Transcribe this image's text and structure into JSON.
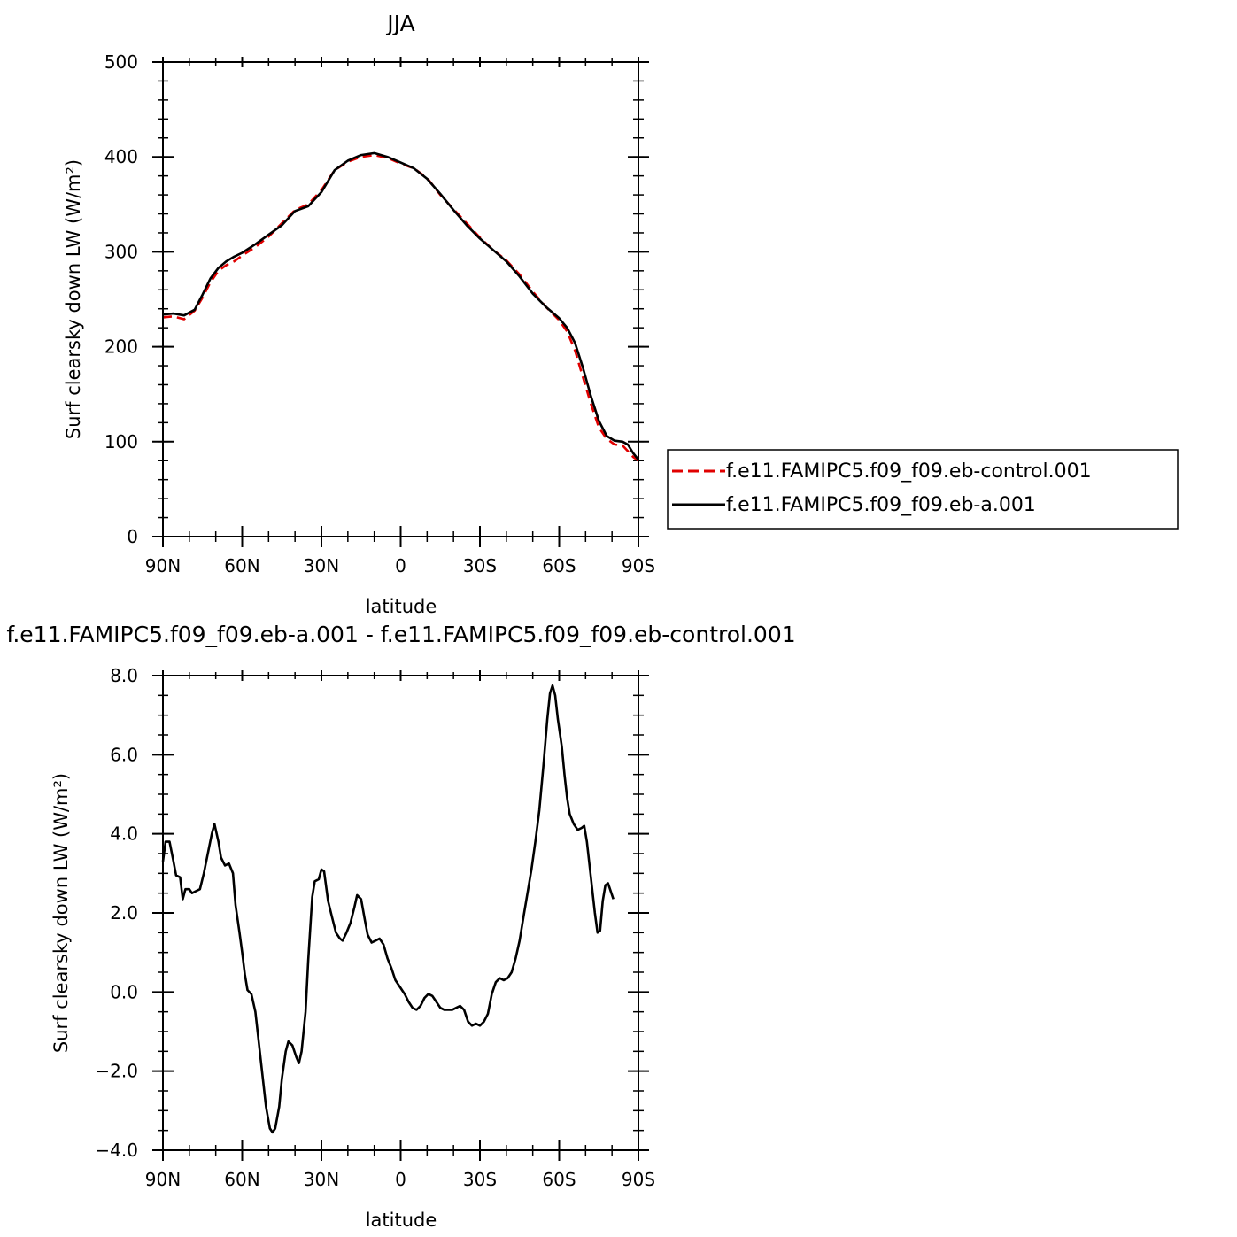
{
  "chart_data": [
    {
      "type": "line",
      "title": "JJA",
      "xlabel": "latitude",
      "ylabel": "Surf clearsky down LW (W/m²)",
      "xlim": [
        90,
        -90
      ],
      "ylim": [
        0,
        500
      ],
      "x_ticks": [
        {
          "value": 90,
          "label": "90N"
        },
        {
          "value": 60,
          "label": "60N"
        },
        {
          "value": 30,
          "label": "30N"
        },
        {
          "value": 0,
          "label": "0"
        },
        {
          "value": -30,
          "label": "30S"
        },
        {
          "value": -60,
          "label": "60S"
        },
        {
          "value": -90,
          "label": "90S"
        }
      ],
      "y_ticks": [
        {
          "value": 0,
          "label": "0"
        },
        {
          "value": 100,
          "label": "100"
        },
        {
          "value": 200,
          "label": "200"
        },
        {
          "value": 300,
          "label": "300"
        },
        {
          "value": 400,
          "label": "400"
        },
        {
          "value": 500,
          "label": "500"
        }
      ],
      "legend_position": "right",
      "series": [
        {
          "name": "f.e11.FAMIPC5.f09_f09.eb-control.001",
          "color": "#e00000",
          "dash": "dashed",
          "points": [
            [
              90,
              231
            ],
            [
              86,
              232
            ],
            [
              82,
              229
            ],
            [
              78,
              238
            ],
            [
              75,
              252
            ],
            [
              72,
              268
            ],
            [
              69,
              280
            ],
            [
              66,
              286
            ],
            [
              63,
              290
            ],
            [
              60,
              296
            ],
            [
              55,
              305
            ],
            [
              50,
              316
            ],
            [
              45,
              330
            ],
            [
              40,
              344
            ],
            [
              35,
              350
            ],
            [
              30,
              365
            ],
            [
              25,
              386
            ],
            [
              20,
              395
            ],
            [
              15,
              400
            ],
            [
              10,
              402
            ],
            [
              5,
              399
            ],
            [
              0,
              393
            ],
            [
              -5,
              388
            ],
            [
              -10,
              378
            ],
            [
              -15,
              360
            ],
            [
              -20,
              345
            ],
            [
              -25,
              330
            ],
            [
              -30,
              315
            ],
            [
              -35,
              302
            ],
            [
              -40,
              291
            ],
            [
              -45,
              276
            ],
            [
              -50,
              258
            ],
            [
              -55,
              242
            ],
            [
              -60,
              228
            ],
            [
              -63,
              216
            ],
            [
              -66,
              196
            ],
            [
              -69,
              168
            ],
            [
              -72,
              140
            ],
            [
              -75,
              115
            ],
            [
              -78,
              103
            ],
            [
              -81,
              97
            ],
            [
              -84,
              96
            ],
            [
              -86,
              90
            ],
            [
              -88,
              84
            ],
            [
              -90,
              80
            ]
          ]
        },
        {
          "name": "f.e11.FAMIPC5.f09_f09.eb-a.001",
          "color": "#000000",
          "dash": "solid",
          "points": [
            [
              90,
              234
            ],
            [
              86,
              235
            ],
            [
              82,
              233
            ],
            [
              78,
              239
            ],
            [
              75,
              255
            ],
            [
              72,
              272
            ],
            [
              69,
              283
            ],
            [
              66,
              290
            ],
            [
              63,
              295
            ],
            [
              60,
              299
            ],
            [
              55,
              308
            ],
            [
              50,
              318
            ],
            [
              45,
              328
            ],
            [
              40,
              343
            ],
            [
              35,
              348
            ],
            [
              30,
              363
            ],
            [
              25,
              386
            ],
            [
              20,
              396
            ],
            [
              15,
              402
            ],
            [
              10,
              404
            ],
            [
              5,
              400
            ],
            [
              0,
              394
            ],
            [
              -5,
              388
            ],
            [
              -10,
              377
            ],
            [
              -15,
              361
            ],
            [
              -20,
              344
            ],
            [
              -25,
              328
            ],
            [
              -30,
              314
            ],
            [
              -35,
              302
            ],
            [
              -40,
              290
            ],
            [
              -45,
              274
            ],
            [
              -50,
              256
            ],
            [
              -55,
              242
            ],
            [
              -60,
              230
            ],
            [
              -63,
              220
            ],
            [
              -66,
              204
            ],
            [
              -69,
              178
            ],
            [
              -72,
              148
            ],
            [
              -75,
              122
            ],
            [
              -78,
              106
            ],
            [
              -81,
              101
            ],
            [
              -84,
              100
            ],
            [
              -86,
              97
            ],
            [
              -88,
              88
            ],
            [
              -90,
              81
            ]
          ]
        }
      ]
    },
    {
      "type": "line",
      "title": "f.e11.FAMIPC5.f09_f09.eb-a.001 - f.e11.FAMIPC5.f09_f09.eb-control.001",
      "xlabel": "latitude",
      "ylabel": "Surf clearsky down LW (W/m²)",
      "xlim": [
        90,
        -90
      ],
      "ylim": [
        -4,
        8
      ],
      "x_ticks": [
        {
          "value": 90,
          "label": "90N"
        },
        {
          "value": 60,
          "label": "60N"
        },
        {
          "value": 30,
          "label": "30N"
        },
        {
          "value": 0,
          "label": "0"
        },
        {
          "value": -30,
          "label": "30S"
        },
        {
          "value": -60,
          "label": "60S"
        },
        {
          "value": -90,
          "label": "90S"
        }
      ],
      "y_ticks": [
        {
          "value": -4,
          "label": "−4.0"
        },
        {
          "value": -2,
          "label": "−2.0"
        },
        {
          "value": 0,
          "label": "0.0"
        },
        {
          "value": 2,
          "label": "2.0"
        },
        {
          "value": 4,
          "label": "4.0"
        },
        {
          "value": 6,
          "label": "6.0"
        },
        {
          "value": 8,
          "label": "8.0"
        }
      ],
      "series": [
        {
          "name": "",
          "color": "#000000",
          "dash": "solid",
          "points": [
            [
              90,
              3.3
            ],
            [
              89,
              3.8
            ],
            [
              87.5,
              3.8
            ],
            [
              86,
              3.3
            ],
            [
              85,
              2.95
            ],
            [
              83.5,
              2.9
            ],
            [
              82.5,
              2.35
            ],
            [
              81.5,
              2.6
            ],
            [
              80,
              2.6
            ],
            [
              79,
              2.5
            ],
            [
              77.5,
              2.55
            ],
            [
              76,
              2.6
            ],
            [
              74.5,
              3.0
            ],
            [
              73,
              3.5
            ],
            [
              71.5,
              4.0
            ],
            [
              70.5,
              4.25
            ],
            [
              69,
              3.8
            ],
            [
              68,
              3.4
            ],
            [
              66.5,
              3.2
            ],
            [
              65,
              3.25
            ],
            [
              63.5,
              3.0
            ],
            [
              62.5,
              2.2
            ],
            [
              61,
              1.5
            ],
            [
              60,
              1.0
            ],
            [
              59,
              0.45
            ],
            [
              58,
              0.05
            ],
            [
              56.5,
              -0.05
            ],
            [
              55,
              -0.5
            ],
            [
              54,
              -1.1
            ],
            [
              52.5,
              -2.0
            ],
            [
              51,
              -2.9
            ],
            [
              49.5,
              -3.45
            ],
            [
              48.5,
              -3.55
            ],
            [
              47.5,
              -3.45
            ],
            [
              46,
              -2.9
            ],
            [
              45,
              -2.2
            ],
            [
              43.5,
              -1.5
            ],
            [
              42.5,
              -1.25
            ],
            [
              41,
              -1.35
            ],
            [
              39.5,
              -1.65
            ],
            [
              38.5,
              -1.8
            ],
            [
              37.5,
              -1.5
            ],
            [
              36,
              -0.5
            ],
            [
              35,
              0.8
            ],
            [
              33.5,
              2.4
            ],
            [
              32.5,
              2.8
            ],
            [
              31,
              2.85
            ],
            [
              30,
              3.1
            ],
            [
              29,
              3.05
            ],
            [
              27.5,
              2.3
            ],
            [
              26,
              1.9
            ],
            [
              24.5,
              1.5
            ],
            [
              23,
              1.35
            ],
            [
              22,
              1.3
            ],
            [
              20.5,
              1.5
            ],
            [
              19,
              1.75
            ],
            [
              17.5,
              2.15
            ],
            [
              16.5,
              2.45
            ],
            [
              15,
              2.35
            ],
            [
              13.5,
              1.8
            ],
            [
              12.5,
              1.45
            ],
            [
              11,
              1.25
            ],
            [
              9.5,
              1.3
            ],
            [
              8,
              1.35
            ],
            [
              6.5,
              1.2
            ],
            [
              5,
              0.85
            ],
            [
              3.5,
              0.6
            ],
            [
              2,
              0.3
            ],
            [
              0,
              0.1
            ],
            [
              -1.5,
              -0.05
            ],
            [
              -3,
              -0.25
            ],
            [
              -4.5,
              -0.4
            ],
            [
              -6,
              -0.45
            ],
            [
              -7.5,
              -0.35
            ],
            [
              -9,
              -0.15
            ],
            [
              -10.5,
              -0.05
            ],
            [
              -12,
              -0.1
            ],
            [
              -13.5,
              -0.25
            ],
            [
              -15,
              -0.4
            ],
            [
              -16.5,
              -0.45
            ],
            [
              -18,
              -0.45
            ],
            [
              -19.5,
              -0.45
            ],
            [
              -21,
              -0.4
            ],
            [
              -22.5,
              -0.35
            ],
            [
              -24,
              -0.45
            ],
            [
              -25.5,
              -0.75
            ],
            [
              -27,
              -0.85
            ],
            [
              -28.5,
              -0.8
            ],
            [
              -30,
              -0.85
            ],
            [
              -31.5,
              -0.75
            ],
            [
              -33,
              -0.55
            ],
            [
              -34.5,
              -0.05
            ],
            [
              -36,
              0.25
            ],
            [
              -37.5,
              0.35
            ],
            [
              -39,
              0.3
            ],
            [
              -40.5,
              0.35
            ],
            [
              -42,
              0.5
            ],
            [
              -43.5,
              0.85
            ],
            [
              -45,
              1.3
            ],
            [
              -46.5,
              1.9
            ],
            [
              -48,
              2.5
            ],
            [
              -49.5,
              3.1
            ],
            [
              -51,
              3.8
            ],
            [
              -52.5,
              4.6
            ],
            [
              -54,
              5.7
            ],
            [
              -55.5,
              6.9
            ],
            [
              -56.5,
              7.55
            ],
            [
              -57.5,
              7.75
            ],
            [
              -58.5,
              7.5
            ],
            [
              -59.5,
              6.9
            ],
            [
              -61,
              6.2
            ],
            [
              -62,
              5.5
            ],
            [
              -63,
              4.9
            ],
            [
              -64,
              4.5
            ],
            [
              -65.5,
              4.25
            ],
            [
              -67,
              4.1
            ],
            [
              -68.5,
              4.15
            ],
            [
              -69.5,
              4.2
            ],
            [
              -70.5,
              3.8
            ],
            [
              -71.5,
              3.2
            ],
            [
              -72.5,
              2.6
            ],
            [
              -73.5,
              2.0
            ],
            [
              -74.5,
              1.5
            ],
            [
              -75.5,
              1.55
            ],
            [
              -76.5,
              2.3
            ],
            [
              -77.5,
              2.7
            ],
            [
              -78.5,
              2.75
            ],
            [
              -79.5,
              2.55
            ],
            [
              -80.5,
              2.35
            ]
          ]
        }
      ]
    }
  ]
}
